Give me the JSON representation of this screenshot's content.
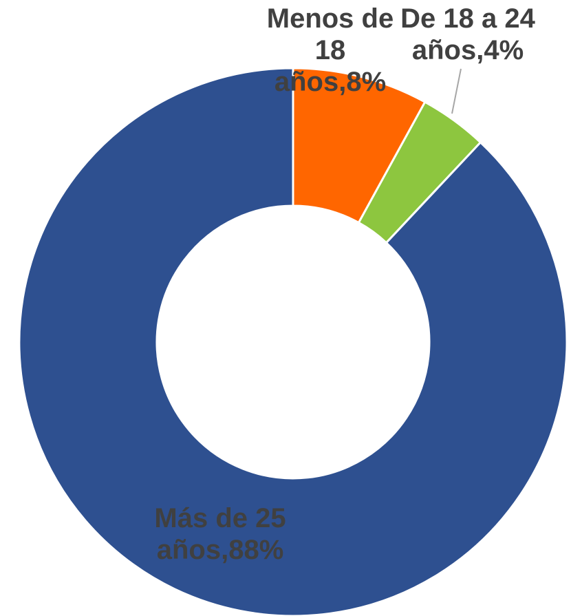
{
  "chart_data": {
    "type": "pie",
    "variant": "donut",
    "slices": [
      {
        "label": "Menos de 18 años",
        "value": 8,
        "color": "#FF6600",
        "data_label": [
          "Menos de",
          "18",
          "años,8%"
        ]
      },
      {
        "label": "De 18 a 24 años",
        "value": 4,
        "color": "#8DC63F",
        "data_label": [
          "De 18 a 24",
          "años,4%"
        ]
      },
      {
        "label": "Más de 25 años",
        "value": 88,
        "color": "#2E5090",
        "data_label": [
          "Más de 25",
          "años,88%"
        ]
      }
    ],
    "unit": "%",
    "legend": "none",
    "leader_line_color": "#A6A6A6",
    "label_color": "#404040"
  }
}
